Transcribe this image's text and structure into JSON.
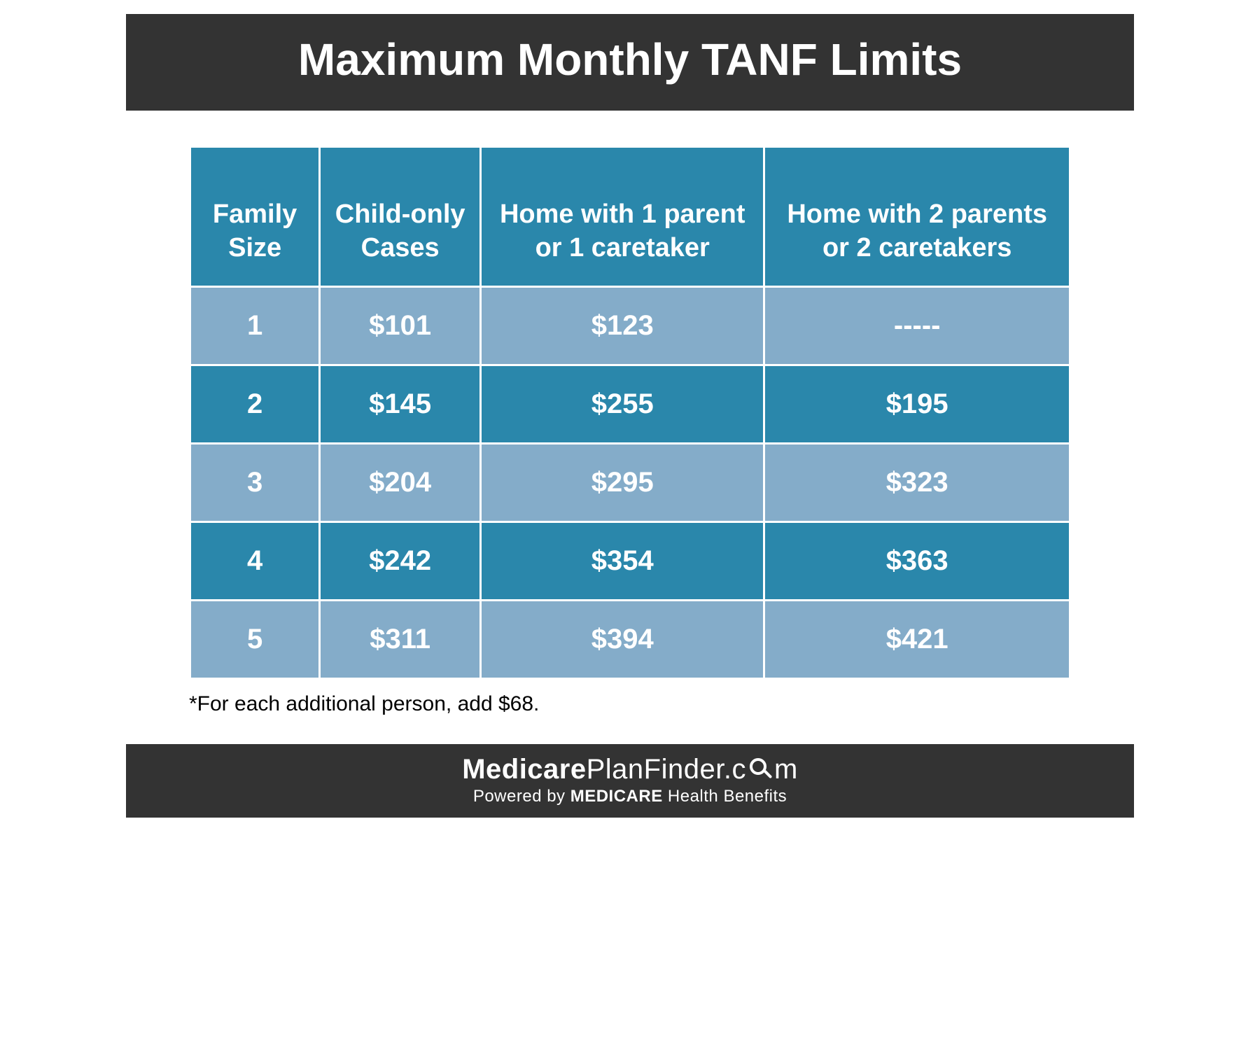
{
  "title": "Maximum Monthly TANF Limits",
  "table": {
    "columns": [
      "Family Size",
      "Child-only Cases",
      "Home with 1 parent or 1 caretaker",
      "Home with 2 parents or 2 caretakers"
    ],
    "rows": [
      [
        "1",
        "$101",
        "$123",
        "-----"
      ],
      [
        "2",
        "$145",
        "$255",
        "$195"
      ],
      [
        "3",
        "$204",
        "$295",
        "$323"
      ],
      [
        "4",
        "$242",
        "$354",
        "$363"
      ],
      [
        "5",
        "$311",
        "$394",
        "$421"
      ]
    ],
    "header_bg": "#2a87ab",
    "row_odd_bg": "#84acc9",
    "row_even_bg": "#2a87ab",
    "text_color": "#ffffff",
    "border_color": "#ffffff",
    "header_fontsize": 38,
    "cell_fontsize": 40
  },
  "footnote": "*For each additional person, add $68.",
  "footer": {
    "brand_bold1": "Medicare",
    "brand_thin1": "Plan",
    "brand_thin2": "Finder.c",
    "brand_thin3": "m",
    "powered_prefix": "Powered by ",
    "powered_bold": "MEDICARE",
    "powered_suffix": " Health Benefits"
  },
  "colors": {
    "title_bar_bg": "#333333",
    "footer_bar_bg": "#333333",
    "page_bg": "#ffffff"
  }
}
